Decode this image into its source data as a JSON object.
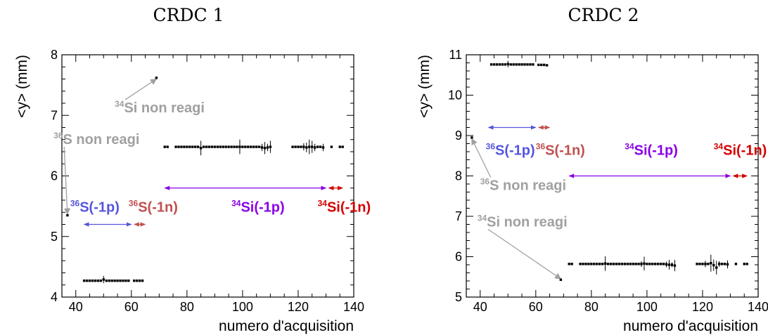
{
  "colors": {
    "blue": "#5555dd",
    "brown": "#c05050",
    "purple": "#8a00e8",
    "red": "#d40000",
    "gray": "#a0a0a0",
    "data": "#000000"
  },
  "chart_data": [
    {
      "type": "scatter",
      "title": "CRDC 1",
      "xlabel": "numero d'acquisition",
      "ylabel": "<y> (mm)",
      "xlim": [
        35,
        140
      ],
      "ylim": [
        4,
        8
      ],
      "xticks": [
        40,
        60,
        80,
        100,
        120,
        140
      ],
      "yticks": [
        4,
        5,
        6,
        7,
        8
      ],
      "grid": false,
      "series": [
        {
          "points": [
            {
              "x": 37,
              "y": 5.35
            },
            {
              "x": 43,
              "y": 4.27
            },
            {
              "x": 44,
              "y": 4.27
            },
            {
              "x": 45,
              "y": 4.27
            },
            {
              "x": 46,
              "y": 4.27
            },
            {
              "x": 47,
              "y": 4.27
            },
            {
              "x": 48,
              "y": 4.27
            },
            {
              "x": 49,
              "y": 4.27
            },
            {
              "x": 50,
              "y": 4.29,
              "err": 0.06
            },
            {
              "x": 51,
              "y": 4.27
            },
            {
              "x": 52,
              "y": 4.27
            },
            {
              "x": 53,
              "y": 4.27
            },
            {
              "x": 54,
              "y": 4.27
            },
            {
              "x": 55,
              "y": 4.27
            },
            {
              "x": 56,
              "y": 4.27
            },
            {
              "x": 57,
              "y": 4.27
            },
            {
              "x": 58,
              "y": 4.27
            },
            {
              "x": 59,
              "y": 4.27
            },
            {
              "x": 61,
              "y": 4.27
            },
            {
              "x": 62,
              "y": 4.27
            },
            {
              "x": 63,
              "y": 4.27
            },
            {
              "x": 64,
              "y": 4.27
            },
            {
              "x": 69,
              "y": 7.62
            },
            {
              "x": 72,
              "y": 6.48
            },
            {
              "x": 73,
              "y": 6.48
            },
            {
              "x": 76,
              "y": 6.48
            },
            {
              "x": 77,
              "y": 6.48
            },
            {
              "x": 78,
              "y": 6.48
            },
            {
              "x": 79,
              "y": 6.48
            },
            {
              "x": 80,
              "y": 6.48
            },
            {
              "x": 81,
              "y": 6.48
            },
            {
              "x": 82,
              "y": 6.48
            },
            {
              "x": 83,
              "y": 6.48
            },
            {
              "x": 84,
              "y": 6.48
            },
            {
              "x": 85,
              "y": 6.46,
              "err": 0.12
            },
            {
              "x": 86,
              "y": 6.48
            },
            {
              "x": 87,
              "y": 6.48
            },
            {
              "x": 88,
              "y": 6.48
            },
            {
              "x": 89,
              "y": 6.48
            },
            {
              "x": 90,
              "y": 6.48
            },
            {
              "x": 91,
              "y": 6.48
            },
            {
              "x": 92,
              "y": 6.48
            },
            {
              "x": 93,
              "y": 6.48
            },
            {
              "x": 94,
              "y": 6.48
            },
            {
              "x": 95,
              "y": 6.48
            },
            {
              "x": 96,
              "y": 6.48
            },
            {
              "x": 97,
              "y": 6.48
            },
            {
              "x": 98,
              "y": 6.48
            },
            {
              "x": 99,
              "y": 6.48,
              "err": 0.12
            },
            {
              "x": 100,
              "y": 6.48
            },
            {
              "x": 101,
              "y": 6.48
            },
            {
              "x": 102,
              "y": 6.48
            },
            {
              "x": 103,
              "y": 6.48
            },
            {
              "x": 104,
              "y": 6.48
            },
            {
              "x": 105,
              "y": 6.48
            },
            {
              "x": 106,
              "y": 6.48
            },
            {
              "x": 107,
              "y": 6.47,
              "err": 0.06
            },
            {
              "x": 108,
              "y": 6.46,
              "err": 0.1
            },
            {
              "x": 109,
              "y": 6.47,
              "err": 0.06
            },
            {
              "x": 110,
              "y": 6.48,
              "err": 0.1
            },
            {
              "x": 118,
              "y": 6.48
            },
            {
              "x": 119,
              "y": 6.48
            },
            {
              "x": 120,
              "y": 6.48
            },
            {
              "x": 121,
              "y": 6.48
            },
            {
              "x": 122,
              "y": 6.48,
              "err": 0.06
            },
            {
              "x": 123,
              "y": 6.47,
              "err": 0.08
            },
            {
              "x": 124,
              "y": 6.48,
              "err": 0.12
            },
            {
              "x": 125,
              "y": 6.48,
              "err": 0.1
            },
            {
              "x": 126,
              "y": 6.47,
              "err": 0.06
            },
            {
              "x": 127,
              "y": 6.48
            },
            {
              "x": 128,
              "y": 6.48
            },
            {
              "x": 129,
              "y": 6.47,
              "err": 0.06
            },
            {
              "x": 132,
              "y": 6.48
            },
            {
              "x": 135,
              "y": 6.48
            },
            {
              "x": 136,
              "y": 6.48
            }
          ]
        }
      ],
      "ranges": [
        {
          "from": 43,
          "to": 60,
          "y": 5.2,
          "color": "#5555dd"
        },
        {
          "from": 61,
          "to": 65,
          "y": 5.2,
          "color": "#c05050"
        },
        {
          "from": 72,
          "to": 130,
          "y": 5.8,
          "color": "#8a00e8"
        },
        {
          "from": 131,
          "to": 136,
          "y": 5.8,
          "color": "#d40000"
        }
      ],
      "annotations": [
        {
          "sup": "34",
          "text": "Si non reagi",
          "x": 54,
          "y": 7.05,
          "color": "#a0a0a0",
          "anchor": "start",
          "arrow_to": {
            "x": 69,
            "y": 7.6
          }
        },
        {
          "sup": "36",
          "text": "S non reagi",
          "x": 32,
          "y": 6.53,
          "color": "#a0a0a0",
          "anchor": "start",
          "arrow_to": {
            "x": 37,
            "y": 5.37
          }
        },
        {
          "sup": "36",
          "text": "S(-1p)",
          "x": 38,
          "y": 5.41,
          "color": "#5555dd",
          "anchor": "start"
        },
        {
          "sup": "36",
          "text": "S(-1n)",
          "x": 59,
          "y": 5.41,
          "color": "#c05050",
          "anchor": "start"
        },
        {
          "sup": "34",
          "text": "Si(-1p)",
          "x": 96,
          "y": 5.41,
          "color": "#8a00e8",
          "anchor": "start"
        },
        {
          "sup": "34",
          "text": "Si(-1n)",
          "x": 127,
          "y": 5.41,
          "color": "#d40000",
          "anchor": "start"
        }
      ]
    },
    {
      "type": "scatter",
      "title": "CRDC 2",
      "xlabel": "numero d'acquisition",
      "ylabel": "<y> (mm)",
      "xlim": [
        35,
        140
      ],
      "ylim": [
        5,
        11
      ],
      "xticks": [
        40,
        60,
        80,
        100,
        120,
        140
      ],
      "yticks": [
        5,
        6,
        7,
        8,
        9,
        10,
        11
      ],
      "grid": false,
      "series": [
        {
          "points": [
            {
              "x": 37,
              "y": 8.95
            },
            {
              "x": 44,
              "y": 10.76
            },
            {
              "x": 45,
              "y": 10.76
            },
            {
              "x": 46,
              "y": 10.76
            },
            {
              "x": 47,
              "y": 10.76
            },
            {
              "x": 48,
              "y": 10.76
            },
            {
              "x": 49,
              "y": 10.76
            },
            {
              "x": 50,
              "y": 10.77,
              "err": 0.08
            },
            {
              "x": 51,
              "y": 10.76
            },
            {
              "x": 52,
              "y": 10.76
            },
            {
              "x": 53,
              "y": 10.76
            },
            {
              "x": 54,
              "y": 10.76
            },
            {
              "x": 55,
              "y": 10.76
            },
            {
              "x": 56,
              "y": 10.76
            },
            {
              "x": 57,
              "y": 10.76
            },
            {
              "x": 58,
              "y": 10.76
            },
            {
              "x": 59,
              "y": 10.76
            },
            {
              "x": 61,
              "y": 10.75
            },
            {
              "x": 62,
              "y": 10.75
            },
            {
              "x": 63,
              "y": 10.75
            },
            {
              "x": 64,
              "y": 10.74
            },
            {
              "x": 69,
              "y": 5.43
            },
            {
              "x": 72,
              "y": 5.82
            },
            {
              "x": 73,
              "y": 5.82
            },
            {
              "x": 76,
              "y": 5.82
            },
            {
              "x": 77,
              "y": 5.82
            },
            {
              "x": 78,
              "y": 5.82
            },
            {
              "x": 79,
              "y": 5.82
            },
            {
              "x": 80,
              "y": 5.82
            },
            {
              "x": 81,
              "y": 5.82
            },
            {
              "x": 82,
              "y": 5.82
            },
            {
              "x": 83,
              "y": 5.82
            },
            {
              "x": 84,
              "y": 5.82
            },
            {
              "x": 85,
              "y": 5.83,
              "err": 0.18
            },
            {
              "x": 86,
              "y": 5.82
            },
            {
              "x": 87,
              "y": 5.82
            },
            {
              "x": 88,
              "y": 5.82
            },
            {
              "x": 89,
              "y": 5.82
            },
            {
              "x": 90,
              "y": 5.82
            },
            {
              "x": 91,
              "y": 5.82
            },
            {
              "x": 92,
              "y": 5.82
            },
            {
              "x": 93,
              "y": 5.82
            },
            {
              "x": 94,
              "y": 5.82
            },
            {
              "x": 95,
              "y": 5.82
            },
            {
              "x": 96,
              "y": 5.82
            },
            {
              "x": 97,
              "y": 5.82
            },
            {
              "x": 98,
              "y": 5.82,
              "err": 0.07
            },
            {
              "x": 99,
              "y": 5.83,
              "err": 0.17
            },
            {
              "x": 100,
              "y": 5.82
            },
            {
              "x": 101,
              "y": 5.82
            },
            {
              "x": 102,
              "y": 5.82
            },
            {
              "x": 103,
              "y": 5.82
            },
            {
              "x": 104,
              "y": 5.82
            },
            {
              "x": 105,
              "y": 5.82
            },
            {
              "x": 106,
              "y": 5.82
            },
            {
              "x": 107,
              "y": 5.81,
              "err": 0.07
            },
            {
              "x": 108,
              "y": 5.8,
              "err": 0.12
            },
            {
              "x": 109,
              "y": 5.8,
              "err": 0.06
            },
            {
              "x": 110,
              "y": 5.78,
              "err": 0.14
            },
            {
              "x": 118,
              "y": 5.82
            },
            {
              "x": 119,
              "y": 5.82
            },
            {
              "x": 120,
              "y": 5.82
            },
            {
              "x": 121,
              "y": 5.82,
              "err": 0.08
            },
            {
              "x": 122,
              "y": 5.82
            },
            {
              "x": 123,
              "y": 5.84,
              "err": 0.21
            },
            {
              "x": 124,
              "y": 5.79,
              "err": 0.14
            },
            {
              "x": 125,
              "y": 5.73,
              "err": 0.17
            },
            {
              "x": 126,
              "y": 5.82,
              "err": 0.07
            },
            {
              "x": 127,
              "y": 5.82
            },
            {
              "x": 128,
              "y": 5.82
            },
            {
              "x": 129,
              "y": 5.81,
              "err": 0.1
            },
            {
              "x": 132,
              "y": 5.82
            },
            {
              "x": 135,
              "y": 5.82
            },
            {
              "x": 136,
              "y": 5.82
            }
          ]
        }
      ],
      "ranges": [
        {
          "from": 43,
          "to": 60,
          "y": 9.2,
          "color": "#5555dd"
        },
        {
          "from": 61,
          "to": 65,
          "y": 9.2,
          "color": "#c05050"
        },
        {
          "from": 72,
          "to": 130,
          "y": 8.0,
          "color": "#8a00e8"
        },
        {
          "from": 131,
          "to": 136,
          "y": 8.0,
          "color": "#d40000"
        }
      ],
      "annotations": [
        {
          "sup": "36",
          "text": "S(-1p)",
          "x": 42,
          "y": 8.52,
          "color": "#5555dd",
          "anchor": "start"
        },
        {
          "sup": "36",
          "text": "S(-1n)",
          "x": 60,
          "y": 8.52,
          "color": "#c05050",
          "anchor": "start"
        },
        {
          "sup": "34",
          "text": "Si(-1p)",
          "x": 92,
          "y": 8.52,
          "color": "#8a00e8",
          "anchor": "start"
        },
        {
          "sup": "34",
          "text": "Si(-1n)",
          "x": 124,
          "y": 8.52,
          "color": "#d40000",
          "anchor": "start"
        },
        {
          "sup": "36",
          "text": "S non reagi",
          "x": 40,
          "y": 7.65,
          "color": "#a0a0a0",
          "anchor": "start",
          "arrow_to": {
            "x": 37,
            "y": 8.92
          }
        },
        {
          "sup": "34",
          "text": "Si non reagi",
          "x": 39,
          "y": 6.75,
          "color": "#a0a0a0",
          "anchor": "start",
          "arrow_to": {
            "x": 69,
            "y": 5.45
          }
        }
      ]
    }
  ]
}
